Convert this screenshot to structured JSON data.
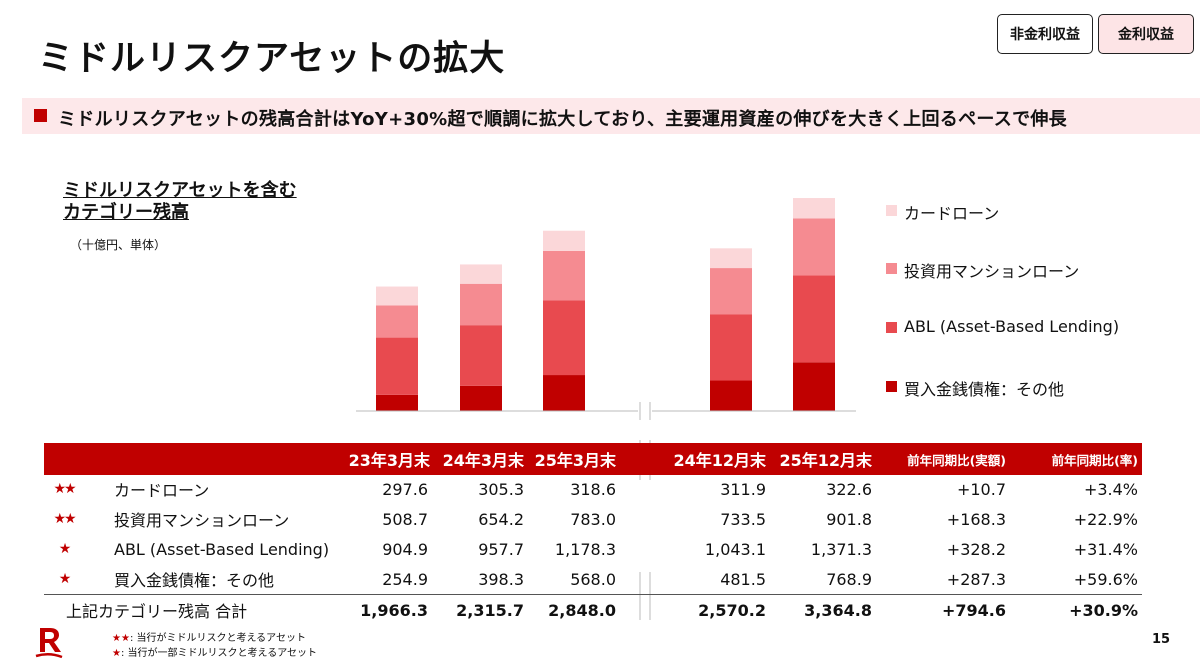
{
  "page": {
    "title": "ミドルリスクアセットの拡大",
    "tags": [
      "非金利収益",
      "金利収益"
    ],
    "banner": "ミドルリスクアセットの残高合計はYoY+30%超で順調に拡大しており、主要運用資産の伸びを大きく上回るペースで伸長",
    "page_number": "15"
  },
  "chart_data": {
    "type": "bar",
    "stacked": true,
    "title_lines": [
      "ミドルリスクアセットを含む",
      "カテゴリー残高"
    ],
    "unit": "（十億円、単体）",
    "categories": [
      "23年3月末",
      "24年3月末",
      "25年3月末",
      "24年12月末",
      "25年12月末"
    ],
    "axis_break_after_index": 2,
    "ylim": [
      0,
      3500
    ],
    "legend_position": "right",
    "series": [
      {
        "name": "買入金銭債権：その他",
        "color": "#c00000",
        "values": [
          254.9,
          398.3,
          568.0,
          481.5,
          768.9
        ]
      },
      {
        "name": "ABL (Asset-Based Lending)",
        "color": "#e84a4f",
        "values": [
          904.9,
          957.7,
          1178.3,
          1043.1,
          1371.3
        ]
      },
      {
        "name": "投資用マンションローン",
        "color": "#f58b91",
        "values": [
          508.7,
          654.2,
          783.0,
          733.5,
          901.8
        ]
      },
      {
        "name": "カードローン",
        "color": "#fbd7d9",
        "values": [
          297.6,
          305.3,
          318.6,
          311.9,
          322.6
        ]
      }
    ]
  },
  "table": {
    "headers": [
      "23年3月末",
      "24年3月末",
      "25年3月末",
      "24年12月末",
      "25年12月末",
      "前年同期比(実額)",
      "前年同期比(率)"
    ],
    "rows": [
      {
        "stars": "★★",
        "label": "カードローン",
        "values": [
          "297.6",
          "305.3",
          "318.6",
          "311.9",
          "322.6",
          "+10.7",
          "+3.4%"
        ]
      },
      {
        "stars": "★★",
        "label": "投資用マンションローン",
        "values": [
          "508.7",
          "654.2",
          "783.0",
          "733.5",
          "901.8",
          "+168.3",
          "+22.9%"
        ]
      },
      {
        "stars": "★",
        "label": "ABL (Asset-Based Lending)",
        "values": [
          "904.9",
          "957.7",
          "1,178.3",
          "1,043.1",
          "1,371.3",
          "+328.2",
          "+31.4%"
        ]
      },
      {
        "stars": "★",
        "label": "買入金銭債権：その他",
        "values": [
          "254.9",
          "398.3",
          "568.0",
          "481.5",
          "768.9",
          "+287.3",
          "+59.6%"
        ]
      }
    ],
    "total": {
      "label": "上記カテゴリー残高 合計",
      "values": [
        "1,966.3",
        "2,315.7",
        "2,848.0",
        "2,570.2",
        "3,364.8",
        "+794.6",
        "+30.9%"
      ]
    }
  },
  "footnotes": [
    {
      "stars": "★★",
      "text": ": 当行がミドルリスクと考えるアセット"
    },
    {
      "stars": "★",
      "text": ": 当行が一部ミドルリスクと考えるアセット"
    }
  ],
  "colors": {
    "accent": "#c00000",
    "banner_bg": "#fde8ea"
  }
}
